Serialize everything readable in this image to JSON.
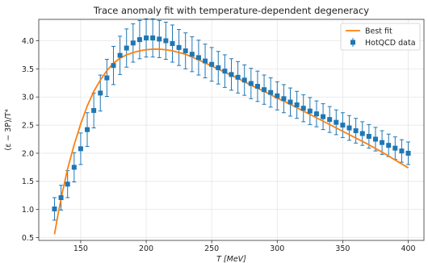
{
  "chart_data": {
    "type": "scatter",
    "title": "Trace anomaly fit with temperature-dependent degeneracy",
    "xlabel": "T [MeV]",
    "ylabel": "(ε − 3P)/T⁴",
    "xlim": [
      118,
      412
    ],
    "ylim": [
      0.45,
      4.38
    ],
    "xticks": [
      150,
      200,
      250,
      300,
      350,
      400
    ],
    "yticks": [
      0.5,
      1.0,
      1.5,
      2.0,
      2.5,
      3.0,
      3.5,
      4.0
    ],
    "ytick_labels": [
      "0.5",
      "1.0",
      "1.5",
      "2.0",
      "2.5",
      "3.0",
      "3.5",
      "4.0"
    ],
    "grid": true,
    "legend_position": "top-right",
    "series": [
      {
        "name": "HotQCD data",
        "kind": "errorbar",
        "marker": "square",
        "color": "#1f77b4",
        "x": [
          130,
          135,
          140,
          145,
          150,
          155,
          160,
          165,
          170,
          175,
          180,
          185,
          190,
          195,
          200,
          205,
          210,
          215,
          220,
          225,
          230,
          235,
          240,
          245,
          250,
          255,
          260,
          265,
          270,
          275,
          280,
          285,
          290,
          295,
          300,
          305,
          310,
          315,
          320,
          325,
          330,
          335,
          340,
          345,
          350,
          355,
          360,
          365,
          370,
          375,
          380,
          385,
          390,
          395,
          400
        ],
        "y": [
          1.01,
          1.21,
          1.45,
          1.75,
          2.08,
          2.42,
          2.76,
          3.07,
          3.34,
          3.56,
          3.74,
          3.87,
          3.96,
          4.02,
          4.05,
          4.05,
          4.03,
          4.0,
          3.95,
          3.88,
          3.82,
          3.76,
          3.7,
          3.64,
          3.58,
          3.52,
          3.46,
          3.4,
          3.35,
          3.3,
          3.24,
          3.19,
          3.13,
          3.08,
          3.02,
          2.97,
          2.91,
          2.86,
          2.8,
          2.75,
          2.7,
          2.65,
          2.6,
          2.55,
          2.5,
          2.45,
          2.4,
          2.35,
          2.3,
          2.25,
          2.19,
          2.14,
          2.09,
          2.04,
          2.0
        ],
        "err": [
          0.2,
          0.22,
          0.24,
          0.26,
          0.28,
          0.3,
          0.31,
          0.32,
          0.33,
          0.34,
          0.34,
          0.34,
          0.34,
          0.34,
          0.34,
          0.34,
          0.33,
          0.33,
          0.33,
          0.32,
          0.32,
          0.31,
          0.31,
          0.3,
          0.3,
          0.29,
          0.29,
          0.28,
          0.28,
          0.27,
          0.27,
          0.27,
          0.26,
          0.26,
          0.25,
          0.25,
          0.25,
          0.24,
          0.24,
          0.24,
          0.23,
          0.23,
          0.23,
          0.22,
          0.22,
          0.22,
          0.22,
          0.21,
          0.21,
          0.21,
          0.21,
          0.2,
          0.2,
          0.2,
          0.2
        ]
      },
      {
        "name": "Best fit",
        "kind": "line",
        "color": "#ff7f0e",
        "x": [
          130,
          133,
          136,
          140,
          145,
          150,
          155,
          160,
          165,
          170,
          175,
          180,
          185,
          190,
          195,
          200,
          205,
          210,
          215,
          220,
          225,
          230,
          240,
          250,
          260,
          270,
          280,
          290,
          300,
          310,
          320,
          330,
          340,
          350,
          360,
          370,
          380,
          390,
          400
        ],
        "y": [
          0.56,
          0.95,
          1.3,
          1.72,
          2.15,
          2.52,
          2.84,
          3.1,
          3.3,
          3.47,
          3.6,
          3.69,
          3.75,
          3.79,
          3.82,
          3.84,
          3.85,
          3.85,
          3.84,
          3.82,
          3.79,
          3.76,
          3.66,
          3.55,
          3.44,
          3.33,
          3.21,
          3.1,
          2.98,
          2.87,
          2.75,
          2.63,
          2.51,
          2.39,
          2.27,
          2.15,
          2.02,
          1.88,
          1.74
        ]
      }
    ]
  }
}
